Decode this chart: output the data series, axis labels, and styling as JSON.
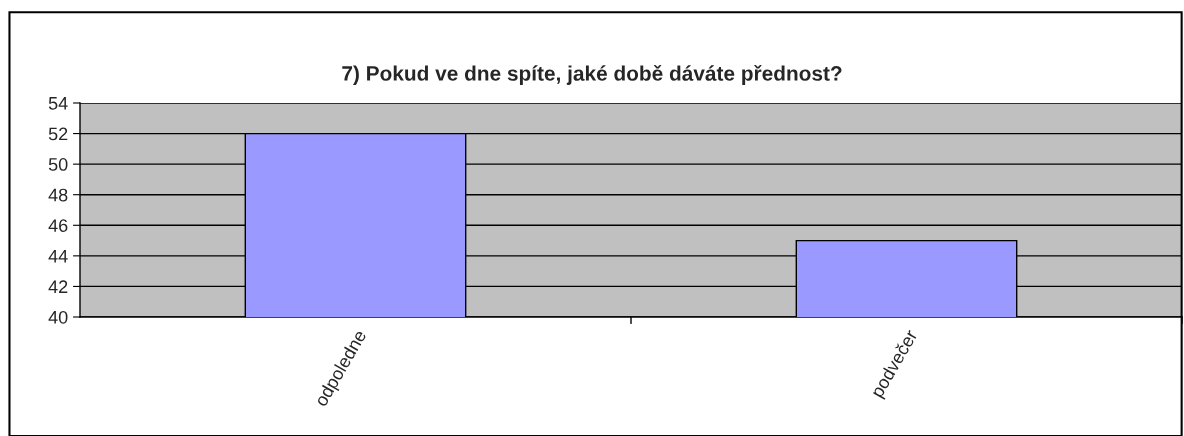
{
  "chart_data": {
    "type": "bar",
    "title": "7) Pokud ve dne spíte, jaké době dáváte přednost?",
    "categories": [
      "odpoledne",
      "podvečer"
    ],
    "values": [
      52,
      45
    ],
    "color": "#9999ff",
    "ylim": [
      40,
      54
    ],
    "yticks": [
      40,
      42,
      44,
      46,
      48,
      50,
      52,
      54
    ],
    "grid": "y",
    "legend": false
  }
}
